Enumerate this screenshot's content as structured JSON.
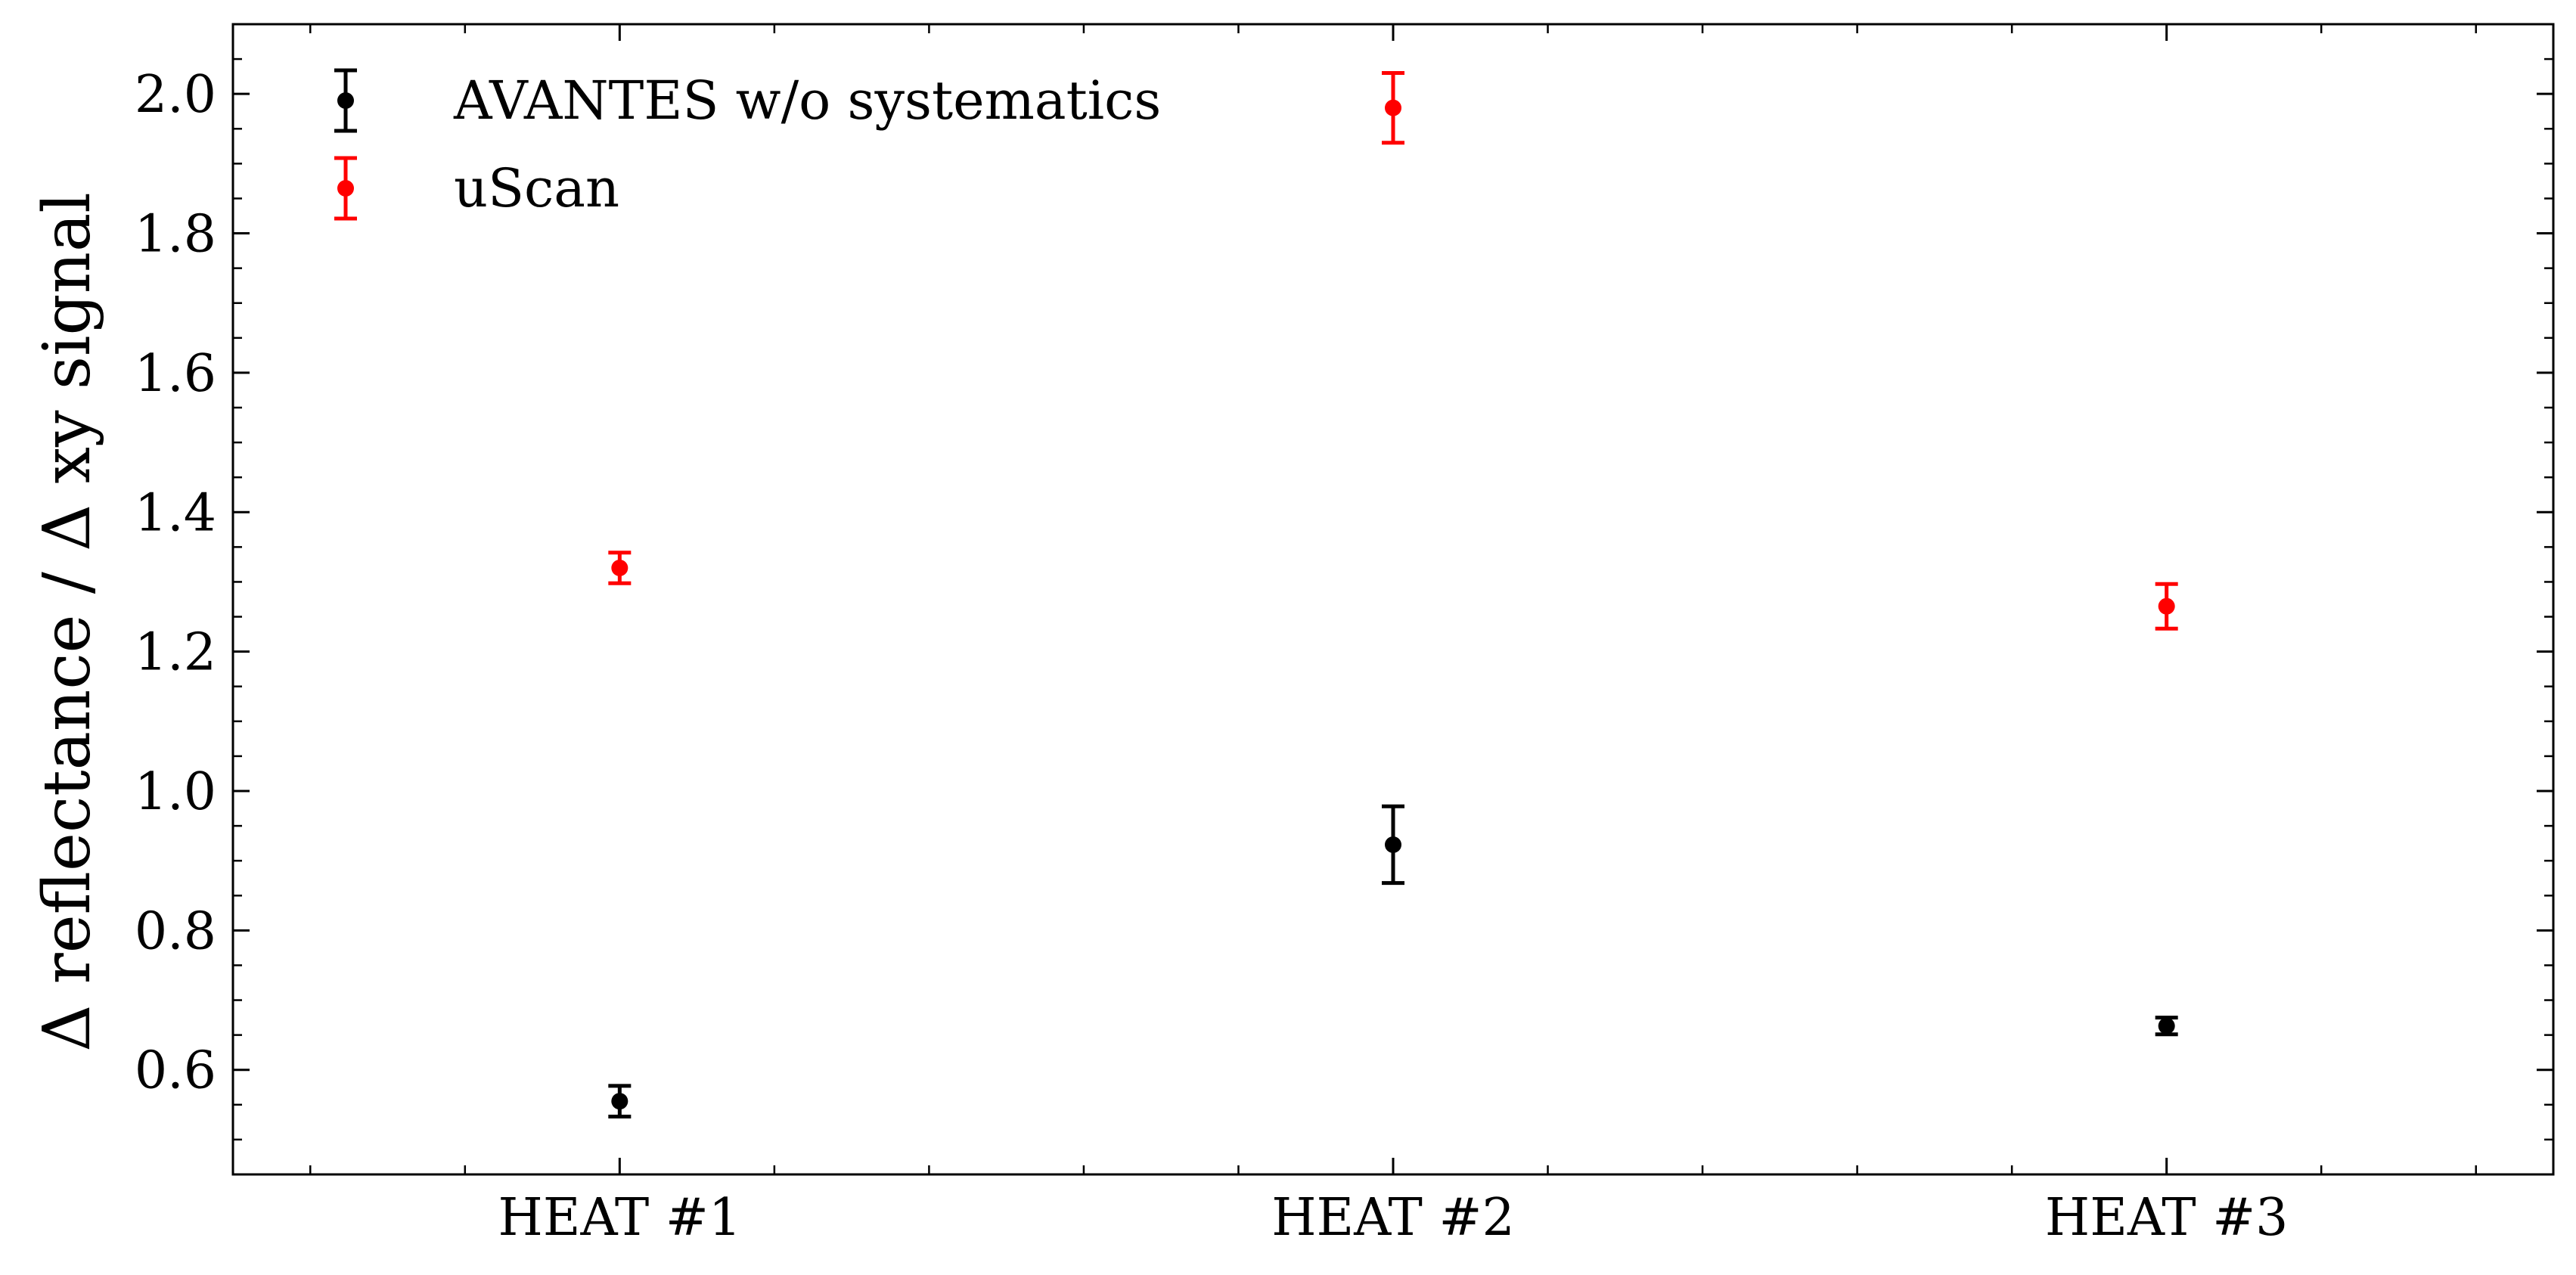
{
  "chart_data": {
    "type": "scatter",
    "title": "",
    "xlabel": "",
    "ylabel": "Δ reflectance / Δ xy signal",
    "categories": [
      "HEAT #1",
      "HEAT #2",
      "HEAT #3"
    ],
    "ylim": [
      0.45,
      2.1
    ],
    "yticks": [
      0.6,
      0.8,
      1.0,
      1.2,
      1.4,
      1.6,
      1.8,
      2.0
    ],
    "ytick_labels": [
      "0.6",
      "0.8",
      "1.0",
      "1.2",
      "1.4",
      "1.6",
      "1.8",
      "2.0"
    ],
    "grid": false,
    "legend_position": "top-left",
    "series": [
      {
        "name": "AVANTES w/o systematics",
        "color": "#000000",
        "values": [
          0.555,
          0.923,
          0.663
        ],
        "errors": [
          0.022,
          0.055,
          0.012
        ]
      },
      {
        "name": "uScan",
        "color": "#ff0000",
        "values": [
          1.32,
          1.98,
          1.265
        ],
        "errors": [
          0.022,
          0.05,
          0.032
        ]
      }
    ]
  }
}
